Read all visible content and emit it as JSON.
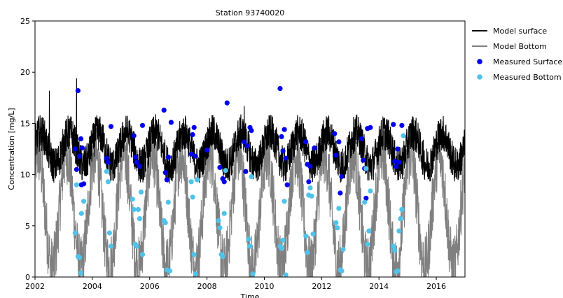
{
  "chart_data": {
    "type": "line",
    "title": "Station  93740020",
    "xlabel": "Time",
    "ylabel": "Concentration [mg/L]",
    "xlim": [
      2002,
      2017
    ],
    "ylim": [
      0,
      25
    ],
    "x_ticks": [
      "2002",
      "2004",
      "2006",
      "2008",
      "2010",
      "2012",
      "2014",
      "2016"
    ],
    "y_ticks": [
      "0",
      "5",
      "10",
      "15",
      "20",
      "25"
    ],
    "grid": false,
    "legend_position": "outside-right",
    "series": [
      {
        "name": "Model surface",
        "kind": "line",
        "color": "#000000",
        "model": {
          "mean": 12.5,
          "seasonal_amplitude": 1.6,
          "noise_band": 1.8,
          "peak_phase": 0.2
        },
        "notable_peaks": [
          {
            "x": 2002.5,
            "y": 18.2
          },
          {
            "x": 2003.45,
            "y": 19.4
          },
          {
            "x": 2009.3,
            "y": 16.7
          }
        ]
      },
      {
        "name": "Model Bottom",
        "kind": "line",
        "color": "#808080",
        "model": {
          "mean": 6.5,
          "seasonal_amplitude": 5.5,
          "noise_band": 3.0,
          "peak_phase": 0.1
        }
      },
      {
        "name": "Measured Surface",
        "kind": "scatter",
        "color": "#0000ee",
        "points": [
          {
            "x": 2003.5,
            "y": 18.2
          },
          {
            "x": 2003.4,
            "y": 12.5
          },
          {
            "x": 2003.45,
            "y": 10.5
          },
          {
            "x": 2003.6,
            "y": 13.5
          },
          {
            "x": 2003.65,
            "y": 12.6
          },
          {
            "x": 2003.55,
            "y": 11.8
          },
          {
            "x": 2003.62,
            "y": 9.0
          },
          {
            "x": 2003.7,
            "y": 9.1
          },
          {
            "x": 2004.5,
            "y": 11.6
          },
          {
            "x": 2004.55,
            "y": 11.2
          },
          {
            "x": 2004.65,
            "y": 14.7
          },
          {
            "x": 2005.45,
            "y": 13.8
          },
          {
            "x": 2005.5,
            "y": 11.7
          },
          {
            "x": 2005.55,
            "y": 11.2
          },
          {
            "x": 2005.65,
            "y": 10.8
          },
          {
            "x": 2005.75,
            "y": 14.8
          },
          {
            "x": 2006.5,
            "y": 16.3
          },
          {
            "x": 2006.55,
            "y": 10.2
          },
          {
            "x": 2006.6,
            "y": 9.5
          },
          {
            "x": 2006.65,
            "y": 11.7
          },
          {
            "x": 2006.75,
            "y": 15.1
          },
          {
            "x": 2007.45,
            "y": 12.0
          },
          {
            "x": 2007.5,
            "y": 13.9
          },
          {
            "x": 2007.55,
            "y": 14.6
          },
          {
            "x": 2007.6,
            "y": 11.8
          },
          {
            "x": 2008.0,
            "y": 12.4
          },
          {
            "x": 2008.45,
            "y": 10.7
          },
          {
            "x": 2008.55,
            "y": 9.6
          },
          {
            "x": 2008.7,
            "y": 17.0
          },
          {
            "x": 2008.6,
            "y": 9.3
          },
          {
            "x": 2009.3,
            "y": 13.2
          },
          {
            "x": 2009.4,
            "y": 12.8
          },
          {
            "x": 2009.5,
            "y": 14.6
          },
          {
            "x": 2009.55,
            "y": 14.3
          },
          {
            "x": 2009.35,
            "y": 10.3
          },
          {
            "x": 2010.55,
            "y": 18.4
          },
          {
            "x": 2010.6,
            "y": 13.7
          },
          {
            "x": 2010.65,
            "y": 12.3
          },
          {
            "x": 2010.7,
            "y": 14.4
          },
          {
            "x": 2010.75,
            "y": 11.6
          },
          {
            "x": 2010.8,
            "y": 9.0
          },
          {
            "x": 2011.45,
            "y": 13.2
          },
          {
            "x": 2011.5,
            "y": 11.0
          },
          {
            "x": 2011.55,
            "y": 9.3
          },
          {
            "x": 2011.6,
            "y": 10.8
          },
          {
            "x": 2011.75,
            "y": 12.6
          },
          {
            "x": 2012.45,
            "y": 14.0
          },
          {
            "x": 2012.5,
            "y": 11.9
          },
          {
            "x": 2012.6,
            "y": 13.2
          },
          {
            "x": 2012.65,
            "y": 8.2
          },
          {
            "x": 2012.7,
            "y": 9.8
          },
          {
            "x": 2013.4,
            "y": 13.5
          },
          {
            "x": 2013.45,
            "y": 11.4
          },
          {
            "x": 2013.5,
            "y": 10.6
          },
          {
            "x": 2013.55,
            "y": 7.7
          },
          {
            "x": 2013.6,
            "y": 14.5
          },
          {
            "x": 2013.7,
            "y": 14.6
          },
          {
            "x": 2014.5,
            "y": 14.9
          },
          {
            "x": 2014.55,
            "y": 11.3
          },
          {
            "x": 2014.6,
            "y": 10.8
          },
          {
            "x": 2014.65,
            "y": 12.5
          },
          {
            "x": 2014.7,
            "y": 11.2
          },
          {
            "x": 2014.8,
            "y": 14.8
          }
        ]
      },
      {
        "name": "Measured Bottom",
        "kind": "scatter",
        "color": "#4fc3ea",
        "points": [
          {
            "x": 2003.4,
            "y": 4.3
          },
          {
            "x": 2003.45,
            "y": 9.0
          },
          {
            "x": 2003.5,
            "y": 2.0
          },
          {
            "x": 2003.55,
            "y": 1.9
          },
          {
            "x": 2003.6,
            "y": 0.4
          },
          {
            "x": 2003.62,
            "y": 6.2
          },
          {
            "x": 2003.7,
            "y": 7.4
          },
          {
            "x": 2004.5,
            "y": 10.3
          },
          {
            "x": 2004.55,
            "y": 9.3
          },
          {
            "x": 2004.6,
            "y": 4.3
          },
          {
            "x": 2004.65,
            "y": 3.0
          },
          {
            "x": 2005.4,
            "y": 7.6
          },
          {
            "x": 2005.45,
            "y": 6.6
          },
          {
            "x": 2005.5,
            "y": 3.2
          },
          {
            "x": 2005.55,
            "y": 3.0
          },
          {
            "x": 2005.6,
            "y": 6.6
          },
          {
            "x": 2005.65,
            "y": 5.7
          },
          {
            "x": 2005.7,
            "y": 8.3
          },
          {
            "x": 2005.75,
            "y": 2.2
          },
          {
            "x": 2006.5,
            "y": 5.5
          },
          {
            "x": 2006.55,
            "y": 5.3
          },
          {
            "x": 2006.6,
            "y": 0.7
          },
          {
            "x": 2006.65,
            "y": 7.3
          },
          {
            "x": 2006.7,
            "y": 0.6
          },
          {
            "x": 2007.45,
            "y": 9.3
          },
          {
            "x": 2007.5,
            "y": 7.8
          },
          {
            "x": 2007.55,
            "y": 2.2
          },
          {
            "x": 2007.6,
            "y": 0.3
          },
          {
            "x": 2007.65,
            "y": 9.5
          },
          {
            "x": 2008.4,
            "y": 5.5
          },
          {
            "x": 2008.45,
            "y": 4.8
          },
          {
            "x": 2008.5,
            "y": 2.2
          },
          {
            "x": 2008.55,
            "y": 2.0
          },
          {
            "x": 2008.6,
            "y": 6.2
          },
          {
            "x": 2008.65,
            "y": 10.4
          },
          {
            "x": 2009.45,
            "y": 3.7
          },
          {
            "x": 2009.5,
            "y": 3.0
          },
          {
            "x": 2009.55,
            "y": 9.8
          },
          {
            "x": 2009.6,
            "y": 0.3
          },
          {
            "x": 2010.55,
            "y": 3.0
          },
          {
            "x": 2010.6,
            "y": 2.8
          },
          {
            "x": 2010.65,
            "y": 3.6
          },
          {
            "x": 2010.7,
            "y": 7.4
          },
          {
            "x": 2010.75,
            "y": 0.2
          },
          {
            "x": 2011.45,
            "y": 4.0
          },
          {
            "x": 2011.5,
            "y": 2.4
          },
          {
            "x": 2011.55,
            "y": 8.0
          },
          {
            "x": 2011.6,
            "y": 8.7
          },
          {
            "x": 2011.65,
            "y": 7.9
          },
          {
            "x": 2011.7,
            "y": 4.2
          },
          {
            "x": 2012.5,
            "y": 5.3
          },
          {
            "x": 2012.55,
            "y": 4.8
          },
          {
            "x": 2012.6,
            "y": 6.7
          },
          {
            "x": 2012.65,
            "y": 0.7
          },
          {
            "x": 2012.7,
            "y": 0.6
          },
          {
            "x": 2012.75,
            "y": 2.7
          },
          {
            "x": 2013.5,
            "y": 7.3
          },
          {
            "x": 2013.55,
            "y": 10.6
          },
          {
            "x": 2013.6,
            "y": 3.2
          },
          {
            "x": 2013.65,
            "y": 4.5
          },
          {
            "x": 2013.7,
            "y": 8.4
          },
          {
            "x": 2014.5,
            "y": 3.0
          },
          {
            "x": 2014.55,
            "y": 2.6
          },
          {
            "x": 2014.6,
            "y": 0.5
          },
          {
            "x": 2014.65,
            "y": 0.6
          },
          {
            "x": 2014.7,
            "y": 4.5
          },
          {
            "x": 2014.75,
            "y": 5.7
          },
          {
            "x": 2014.8,
            "y": 6.6
          },
          {
            "x": 2014.85,
            "y": 13.8
          }
        ]
      }
    ]
  }
}
